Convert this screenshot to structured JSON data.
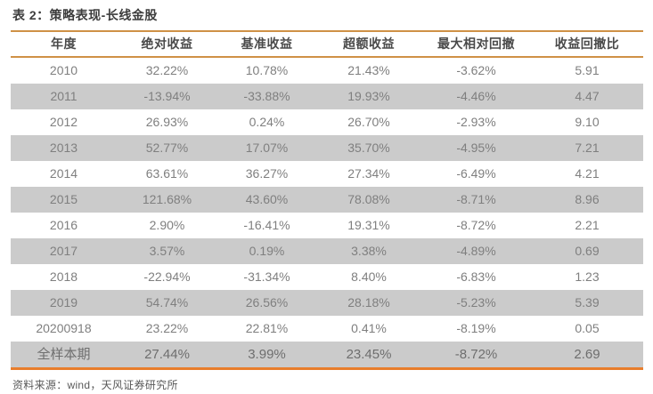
{
  "table": {
    "title": "表 2：策略表现-长线金股",
    "headers": [
      "年度",
      "绝对收益",
      "基准收益",
      "超额收益",
      "最大相对回撤",
      "收益回撤比"
    ],
    "rows": [
      [
        "2010",
        "32.22%",
        "10.78%",
        "21.43%",
        "-3.62%",
        "5.91"
      ],
      [
        "2011",
        "-13.94%",
        "-33.88%",
        "19.93%",
        "-4.46%",
        "4.47"
      ],
      [
        "2012",
        "26.93%",
        "0.24%",
        "26.70%",
        "-2.93%",
        "9.10"
      ],
      [
        "2013",
        "52.77%",
        "17.07%",
        "35.70%",
        "-4.95%",
        "7.21"
      ],
      [
        "2014",
        "63.61%",
        "36.27%",
        "27.34%",
        "-6.49%",
        "4.21"
      ],
      [
        "2015",
        "121.68%",
        "43.60%",
        "78.08%",
        "-8.71%",
        "8.96"
      ],
      [
        "2016",
        "2.90%",
        "-16.41%",
        "19.31%",
        "-8.72%",
        "2.21"
      ],
      [
        "2017",
        "3.57%",
        "0.19%",
        "3.38%",
        "-4.89%",
        "0.69"
      ],
      [
        "2018",
        "-22.94%",
        "-31.34%",
        "8.40%",
        "-6.83%",
        "1.23"
      ],
      [
        "2019",
        "54.74%",
        "26.56%",
        "28.18%",
        "-5.23%",
        "5.39"
      ],
      [
        "20200918",
        "23.22%",
        "22.81%",
        "0.41%",
        "-8.19%",
        "0.05"
      ],
      [
        "全样本期",
        "27.44%",
        "3.99%",
        "23.45%",
        "-8.72%",
        "2.69"
      ]
    ],
    "summary_row_label": "全样本期",
    "source": "资料来源：wind，天风证券研究所"
  },
  "colors": {
    "accent_orange": "#e87d2c",
    "rule_orange": "#cf9146",
    "row_shade": "#cbcbcb",
    "header_text": "#4a4a4a",
    "body_text": "#7f7f7f",
    "title_text": "#3d3d3d",
    "source_text": "#595959"
  }
}
